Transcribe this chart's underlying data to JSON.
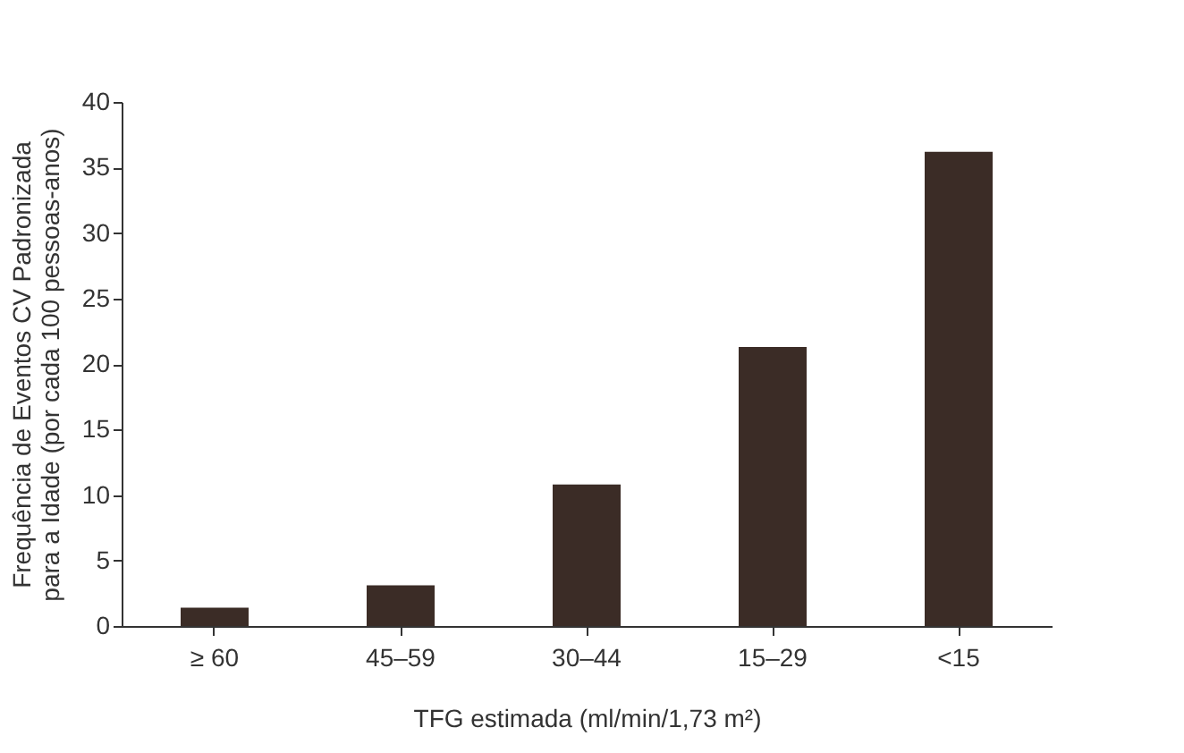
{
  "chart_data": {
    "type": "bar",
    "categories": [
      "≥ 60",
      "45–59",
      "30–44",
      "15–29",
      "<15"
    ],
    "values": [
      1.4,
      3.1,
      10.8,
      21.3,
      36.2
    ],
    "color": "#3b2c26",
    "xlabel": "TFG estimada (ml/min/1,73 m²)",
    "ylabel": "Frequência de Eventos CV Padronizada\npara a Idade (por cada 100 pessoas-anos)",
    "ylim": [
      0,
      40
    ],
    "yticks": [
      0,
      5,
      10,
      15,
      20,
      25,
      30,
      35,
      40
    ],
    "grid": false
  }
}
